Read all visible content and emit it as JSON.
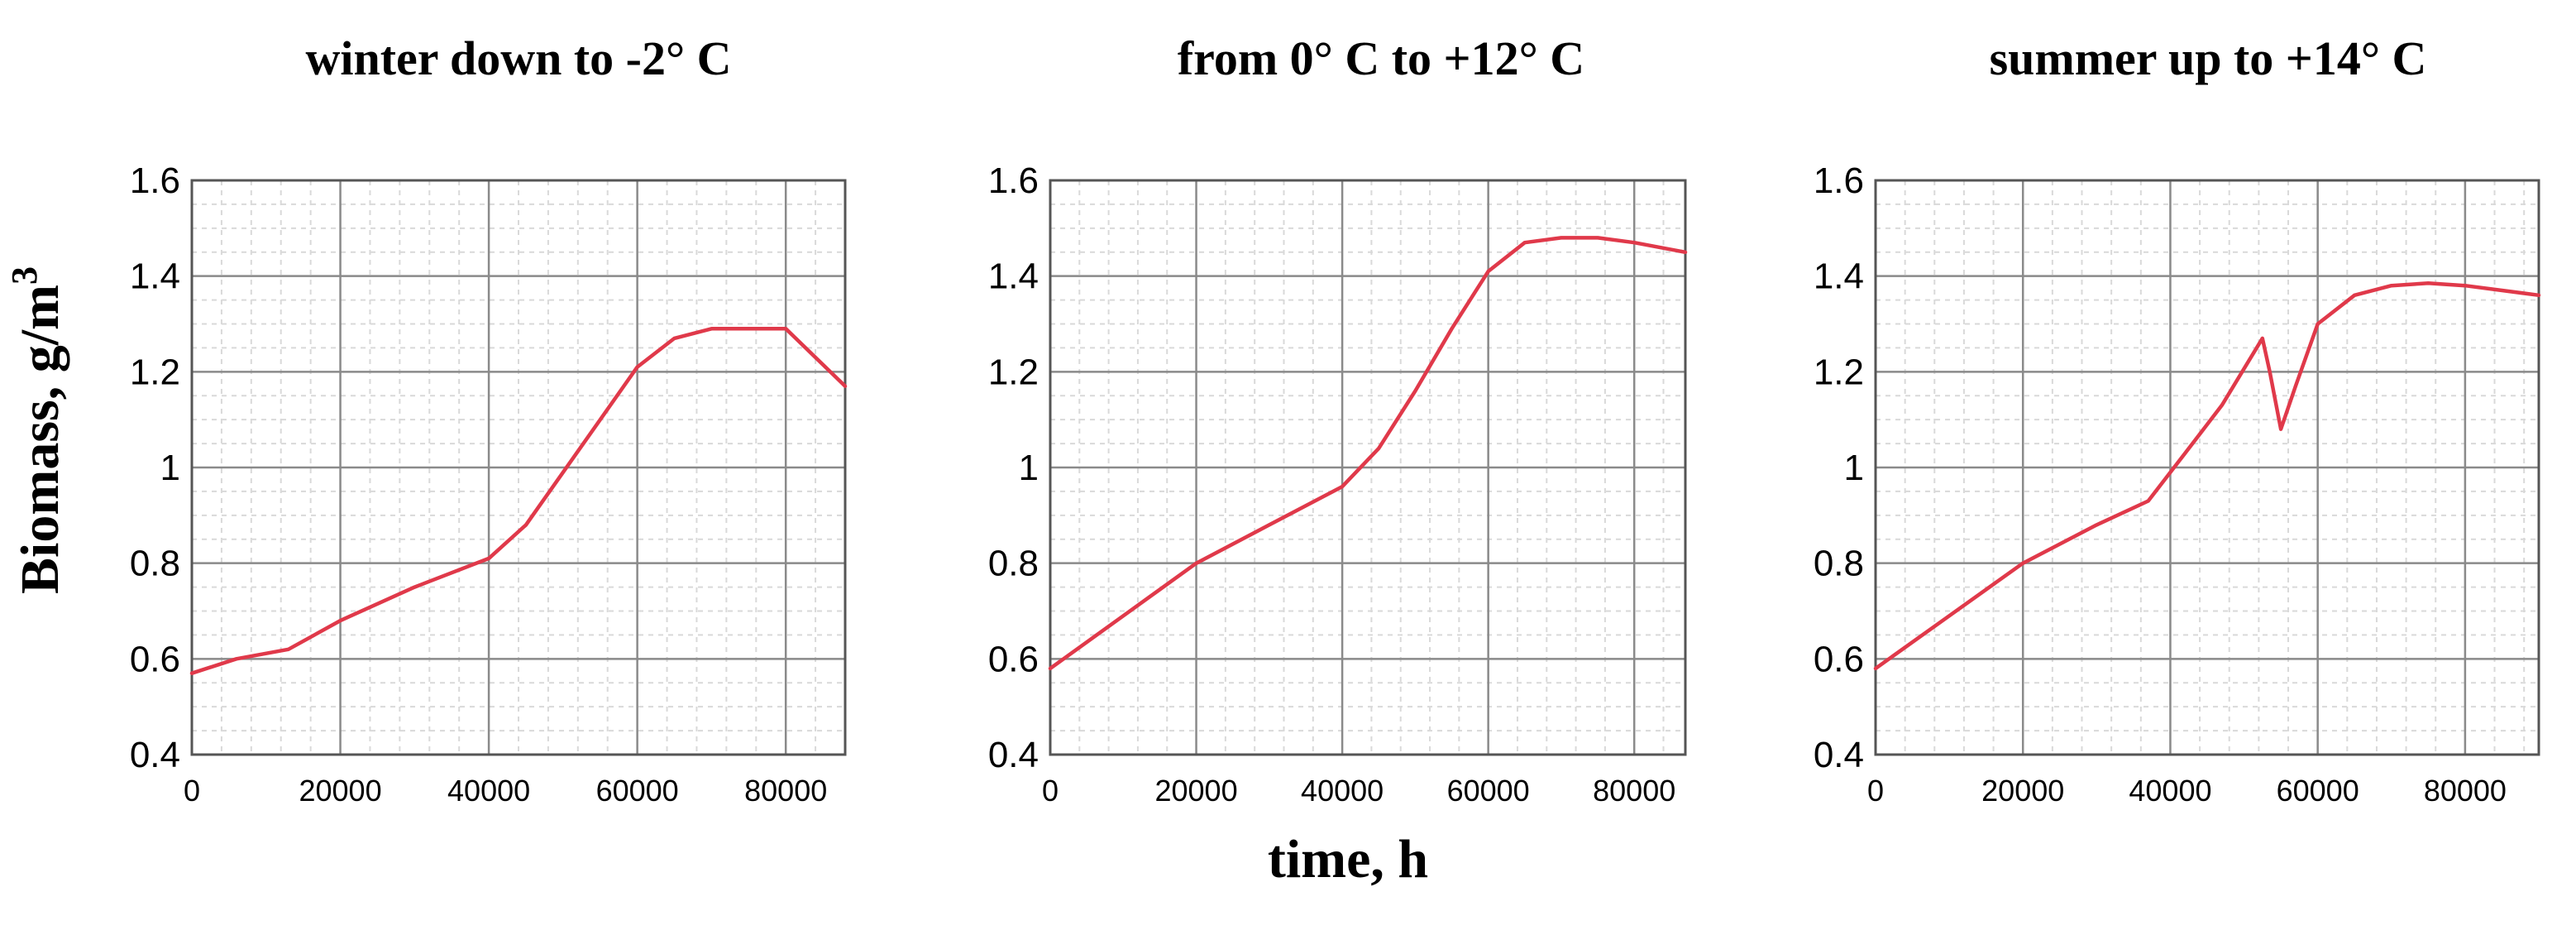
{
  "shared": {
    "ylabel": "Biomass, g/m",
    "ylabel_sup": "3",
    "xlabel": "time, h"
  },
  "colors": {
    "curve": "#e0394a",
    "major_grid": "#8a8a8a",
    "minor_grid": "#d9d9d9"
  },
  "chart_data": [
    {
      "type": "line",
      "title": "winter down to -2° C",
      "xlim": [
        0,
        88000
      ],
      "ylim": [
        0.4,
        1.6
      ],
      "x_ticks": [
        0,
        20000,
        40000,
        60000,
        80000
      ],
      "x_tick_labels": [
        "0",
        "20000",
        "40000",
        "60000",
        "80000"
      ],
      "y_ticks": [
        0.4,
        0.6,
        0.8,
        1.0,
        1.2,
        1.4,
        1.6
      ],
      "y_tick_labels": [
        "0.4",
        "0.6",
        "0.8",
        "1",
        "1.2",
        "1.4",
        "1.6"
      ],
      "grid": true,
      "series": [
        {
          "x": [
            0,
            6000,
            13000,
            20000,
            30000,
            40000,
            45000,
            50000,
            55000,
            60000,
            65000,
            70000,
            75000,
            80000,
            84000,
            88000
          ],
          "y": [
            0.57,
            0.6,
            0.62,
            0.68,
            0.75,
            0.81,
            0.88,
            0.99,
            1.1,
            1.21,
            1.27,
            1.29,
            1.29,
            1.29,
            1.23,
            1.17
          ]
        }
      ]
    },
    {
      "type": "line",
      "title": "from 0° C to +12° C",
      "xlim": [
        0,
        87000
      ],
      "ylim": [
        0.4,
        1.6
      ],
      "x_ticks": [
        0,
        20000,
        40000,
        60000,
        80000
      ],
      "x_tick_labels": [
        "0",
        "20000",
        "40000",
        "60000",
        "80000"
      ],
      "y_ticks": [
        0.4,
        0.6,
        0.8,
        1.0,
        1.2,
        1.4,
        1.6
      ],
      "y_tick_labels": [
        "0.4",
        "0.6",
        "0.8",
        "1",
        "1.2",
        "1.4",
        "1.6"
      ],
      "grid": true,
      "series": [
        {
          "x": [
            0,
            10000,
            20000,
            30000,
            40000,
            45000,
            50000,
            55000,
            60000,
            65000,
            70000,
            75000,
            80000,
            87000
          ],
          "y": [
            0.58,
            0.69,
            0.8,
            0.88,
            0.96,
            1.04,
            1.16,
            1.29,
            1.41,
            1.47,
            1.48,
            1.48,
            1.47,
            1.45
          ]
        }
      ]
    },
    {
      "type": "line",
      "title": "summer up to +14° C",
      "xlim": [
        0,
        90000
      ],
      "ylim": [
        0.4,
        1.6
      ],
      "x_ticks": [
        0,
        20000,
        40000,
        60000,
        80000
      ],
      "x_tick_labels": [
        "0",
        "20000",
        "40000",
        "60000",
        "80000"
      ],
      "y_ticks": [
        0.4,
        0.6,
        0.8,
        1.0,
        1.2,
        1.4,
        1.6
      ],
      "y_tick_labels": [
        "0.4",
        "0.6",
        "0.8",
        "1",
        "1.2",
        "1.4",
        "1.6"
      ],
      "grid": true,
      "series": [
        {
          "x": [
            0,
            10000,
            20000,
            30000,
            37000,
            42000,
            47000,
            52500,
            53500,
            55000,
            57000,
            60000,
            65000,
            70000,
            75000,
            80000,
            90000
          ],
          "y": [
            0.58,
            0.69,
            0.8,
            0.88,
            0.93,
            1.03,
            1.13,
            1.27,
            1.2,
            1.08,
            1.17,
            1.3,
            1.36,
            1.38,
            1.385,
            1.38,
            1.36
          ]
        }
      ]
    }
  ]
}
